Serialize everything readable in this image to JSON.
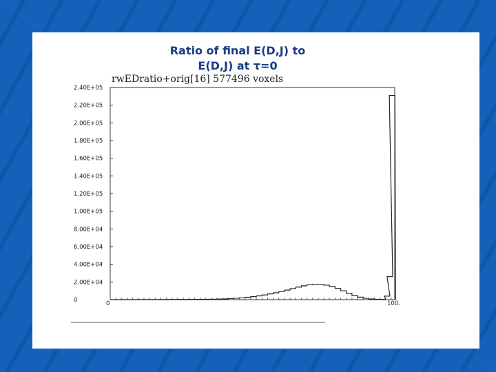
{
  "slide": {
    "title": "Ratio of final E(D,J) to\nE(D,J) at τ=0",
    "background_color": "#1560b8",
    "card_color": "#ffffff"
  },
  "chart_data": {
    "type": "bar",
    "header": "rwEDratio+orig[16]  577496  voxels",
    "ylim": [
      0,
      240000
    ],
    "y_tick_labels": [
      "0",
      "2.00E+04",
      "4.00E+04",
      "6.00E+04",
      "8.00E+04",
      "1.00E+05",
      "1.20E+05",
      "1.40E+05",
      "1.60E+05",
      "1.80E+05",
      "2.00E+05",
      "2.20E+05",
      "2.40E+05"
    ],
    "xlim": [
      0,
      100
    ],
    "x_tick_labels": [
      "0",
      "100."
    ],
    "bins": [
      {
        "x": 33,
        "y": 300
      },
      {
        "x": 35,
        "y": 400
      },
      {
        "x": 37,
        "y": 500
      },
      {
        "x": 39,
        "y": 700
      },
      {
        "x": 41,
        "y": 900
      },
      {
        "x": 43,
        "y": 1200
      },
      {
        "x": 45,
        "y": 1600
      },
      {
        "x": 47,
        "y": 2100
      },
      {
        "x": 49,
        "y": 2700
      },
      {
        "x": 51,
        "y": 3400
      },
      {
        "x": 53,
        "y": 4300
      },
      {
        "x": 55,
        "y": 5300
      },
      {
        "x": 57,
        "y": 6500
      },
      {
        "x": 59,
        "y": 7800
      },
      {
        "x": 61,
        "y": 9200
      },
      {
        "x": 63,
        "y": 10800
      },
      {
        "x": 65,
        "y": 12500
      },
      {
        "x": 67,
        "y": 14200
      },
      {
        "x": 69,
        "y": 15700
      },
      {
        "x": 71,
        "y": 16800
      },
      {
        "x": 73,
        "y": 17400
      },
      {
        "x": 75,
        "y": 17300
      },
      {
        "x": 77,
        "y": 16400
      },
      {
        "x": 79,
        "y": 14900
      },
      {
        "x": 81,
        "y": 12700
      },
      {
        "x": 83,
        "y": 10100
      },
      {
        "x": 85,
        "y": 7300
      },
      {
        "x": 87,
        "y": 4800
      },
      {
        "x": 89,
        "y": 2800
      },
      {
        "x": 91,
        "y": 1500
      },
      {
        "x": 93,
        "y": 800
      },
      {
        "x": 95,
        "y": 400
      },
      {
        "x": 97,
        "y": 300
      },
      {
        "x": 98.5,
        "y": 4000
      },
      {
        "x": 99.5,
        "y": 26000
      },
      {
        "x": 100.3,
        "y": 231000
      }
    ],
    "grid": false
  }
}
